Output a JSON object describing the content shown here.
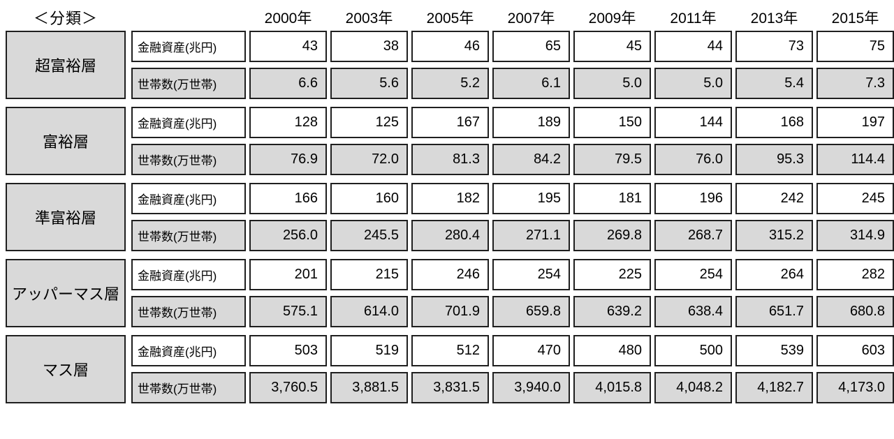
{
  "colors": {
    "cell_gray": "#d9d9d9",
    "border": "#1f1f1f",
    "background": "#ffffff",
    "text": "#000000"
  },
  "chart_data": {
    "type": "table",
    "title": "＜分類＞",
    "columns": [
      "2000年",
      "2003年",
      "2005年",
      "2007年",
      "2009年",
      "2011年",
      "2013年",
      "2015年"
    ],
    "row_labels": {
      "assets": "金融資産(兆円)",
      "households": "世帯数(万世帯)"
    },
    "groups": [
      {
        "category": "超富裕層",
        "assets": [
          "43",
          "38",
          "46",
          "65",
          "45",
          "44",
          "73",
          "75"
        ],
        "households": [
          "6.6",
          "5.6",
          "5.2",
          "6.1",
          "5.0",
          "5.0",
          "5.4",
          "7.3"
        ]
      },
      {
        "category": "富裕層",
        "assets": [
          "128",
          "125",
          "167",
          "189",
          "150",
          "144",
          "168",
          "197"
        ],
        "households": [
          "76.9",
          "72.0",
          "81.3",
          "84.2",
          "79.5",
          "76.0",
          "95.3",
          "114.4"
        ]
      },
      {
        "category": "準富裕層",
        "assets": [
          "166",
          "160",
          "182",
          "195",
          "181",
          "196",
          "242",
          "245"
        ],
        "households": [
          "256.0",
          "245.5",
          "280.4",
          "271.1",
          "269.8",
          "268.7",
          "315.2",
          "314.9"
        ]
      },
      {
        "category": "アッパーマス層",
        "assets": [
          "201",
          "215",
          "246",
          "254",
          "225",
          "254",
          "264",
          "282"
        ],
        "households": [
          "575.1",
          "614.0",
          "701.9",
          "659.8",
          "639.2",
          "638.4",
          "651.7",
          "680.8"
        ]
      },
      {
        "category": "マス層",
        "assets": [
          "503",
          "519",
          "512",
          "470",
          "480",
          "500",
          "539",
          "603"
        ],
        "households": [
          "3,760.5",
          "3,881.5",
          "3,831.5",
          "3,940.0",
          "4,015.8",
          "4,048.2",
          "4,182.7",
          "4,173.0"
        ]
      }
    ]
  }
}
